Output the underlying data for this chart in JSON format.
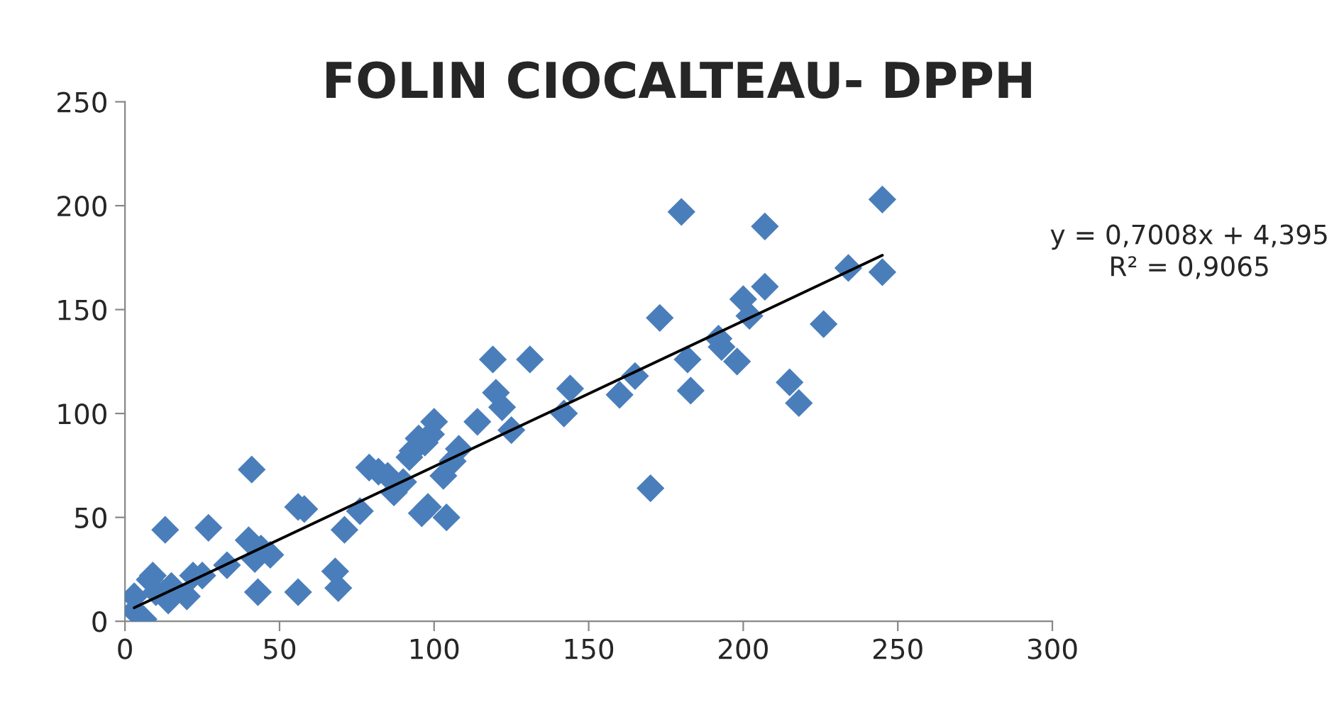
{
  "chart_data": {
    "type": "scatter",
    "title": "FOLIN CIOCALTEAU- DPPH",
    "xlim": [
      0,
      300
    ],
    "xticks": [
      0,
      50,
      100,
      150,
      200,
      250,
      300
    ],
    "ylim": [
      0,
      250
    ],
    "yticks": [
      0,
      50,
      100,
      150,
      200,
      250
    ],
    "grid": false,
    "legend": false,
    "annotations": [
      "y = 0,7008x + 4,395\nR² = 0,9065"
    ],
    "series": [
      {
        "color": "#4a7ebb",
        "marker": "diamond",
        "x": [
          245,
          245,
          234,
          226,
          218,
          215,
          207,
          207,
          202,
          200,
          198,
          193,
          192,
          183,
          182,
          180,
          173,
          170,
          165,
          160,
          144,
          142,
          131,
          125,
          122,
          120,
          119,
          114,
          108,
          106,
          103,
          104,
          100,
          99,
          97,
          98,
          96,
          95,
          93,
          92,
          90,
          87,
          85,
          82,
          79,
          76,
          71,
          69,
          68,
          58,
          56,
          56,
          47,
          44,
          43,
          42,
          41,
          40,
          33,
          27,
          25,
          22,
          20,
          15,
          13,
          14,
          10,
          9,
          8,
          6,
          3,
          3
        ],
        "values": [
          203,
          168,
          170,
          143,
          105,
          115,
          190,
          161,
          147,
          155,
          125,
          132,
          136,
          111,
          126,
          197,
          146,
          64,
          118,
          109,
          112,
          100,
          126,
          92,
          103,
          110,
          126,
          96,
          83,
          77,
          70,
          50,
          96,
          90,
          86,
          55,
          52,
          88,
          82,
          79,
          67,
          62,
          70,
          72,
          74,
          53,
          44,
          16,
          24,
          54,
          55,
          14,
          32,
          35,
          14,
          30,
          73,
          39,
          27,
          45,
          22,
          22,
          12,
          17,
          44,
          10,
          14,
          22,
          20,
          1,
          5,
          12
        ]
      },
      {
        "type": "line",
        "color": "#000000",
        "x": [
          3,
          245
        ],
        "values": [
          6.5,
          176.1
        ]
      }
    ]
  }
}
